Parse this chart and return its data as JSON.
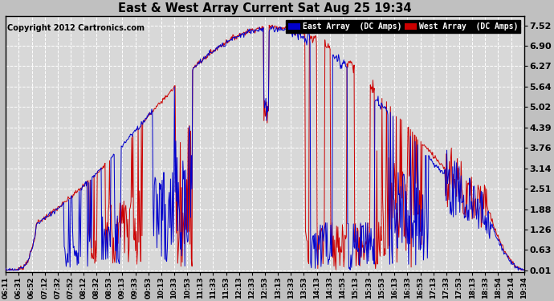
{
  "title": "East & West Array Current Sat Aug 25 19:34",
  "copyright": "Copyright 2012 Cartronics.com",
  "east_color": "#0000cc",
  "west_color": "#cc0000",
  "legend_east": "East Array  (DC Amps)",
  "legend_west": "West Array  (DC Amps)",
  "yticks": [
    0.01,
    0.63,
    1.26,
    1.88,
    2.51,
    3.14,
    3.76,
    4.39,
    5.02,
    5.64,
    6.27,
    6.9,
    7.52
  ],
  "ylim": [
    -0.05,
    7.8
  ],
  "fig_bg": "#c0c0c0",
  "plot_bg": "#d8d8d8",
  "grid_color": "#ffffff",
  "xtick_labels": [
    "06:11",
    "06:31",
    "06:52",
    "07:12",
    "07:32",
    "07:52",
    "08:12",
    "08:32",
    "08:53",
    "09:13",
    "09:33",
    "09:53",
    "10:13",
    "10:33",
    "10:53",
    "11:13",
    "11:33",
    "11:53",
    "12:13",
    "12:33",
    "12:53",
    "13:13",
    "13:33",
    "13:53",
    "14:13",
    "14:33",
    "14:53",
    "15:13",
    "15:33",
    "15:53",
    "16:13",
    "16:33",
    "16:53",
    "17:13",
    "17:33",
    "17:53",
    "18:13",
    "18:33",
    "18:54",
    "19:14",
    "19:34"
  ]
}
